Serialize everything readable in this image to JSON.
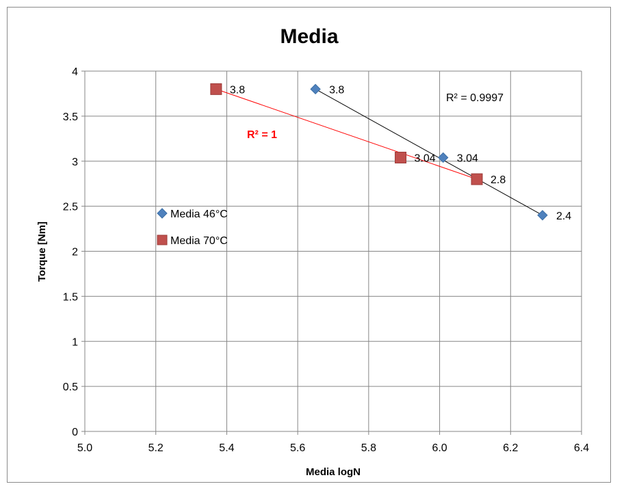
{
  "chart_data": {
    "type": "scatter",
    "title": "Media",
    "xlabel": "Media logN",
    "ylabel": "Torque [Nm]",
    "xlim": [
      5.0,
      6.4
    ],
    "ylim": [
      0,
      4
    ],
    "x_ticks": [
      "5.0",
      "5.2",
      "5.4",
      "5.6",
      "5.8",
      "6.0",
      "6.2",
      "6.4"
    ],
    "y_ticks": [
      "0",
      "0.5",
      "1",
      "1.5",
      "2",
      "2.5",
      "3",
      "3.5",
      "4"
    ],
    "grid": true,
    "legend_position": "left-middle",
    "series": [
      {
        "name": "Media 46°C",
        "marker": "diamond",
        "color": "#4f81bd",
        "trendline_color": "#000000",
        "points": [
          {
            "x": 5.65,
            "y": 3.8,
            "label": "3.8"
          },
          {
            "x": 6.01,
            "y": 3.04,
            "label": "3.04"
          },
          {
            "x": 6.29,
            "y": 2.4,
            "label": "2.4"
          }
        ],
        "r2_label": "R² = 0.9997"
      },
      {
        "name": "Media 70°C",
        "marker": "square",
        "color": "#c0504d",
        "trendline_color": "#ff0000",
        "points": [
          {
            "x": 5.37,
            "y": 3.8,
            "label": "3.8"
          },
          {
            "x": 5.89,
            "y": 3.04,
            "label": "3.04"
          },
          {
            "x": 6.105,
            "y": 2.8,
            "label": "2.8"
          }
        ],
        "r2_label": "R² = 1",
        "r2_color": "#ff0000"
      }
    ]
  }
}
